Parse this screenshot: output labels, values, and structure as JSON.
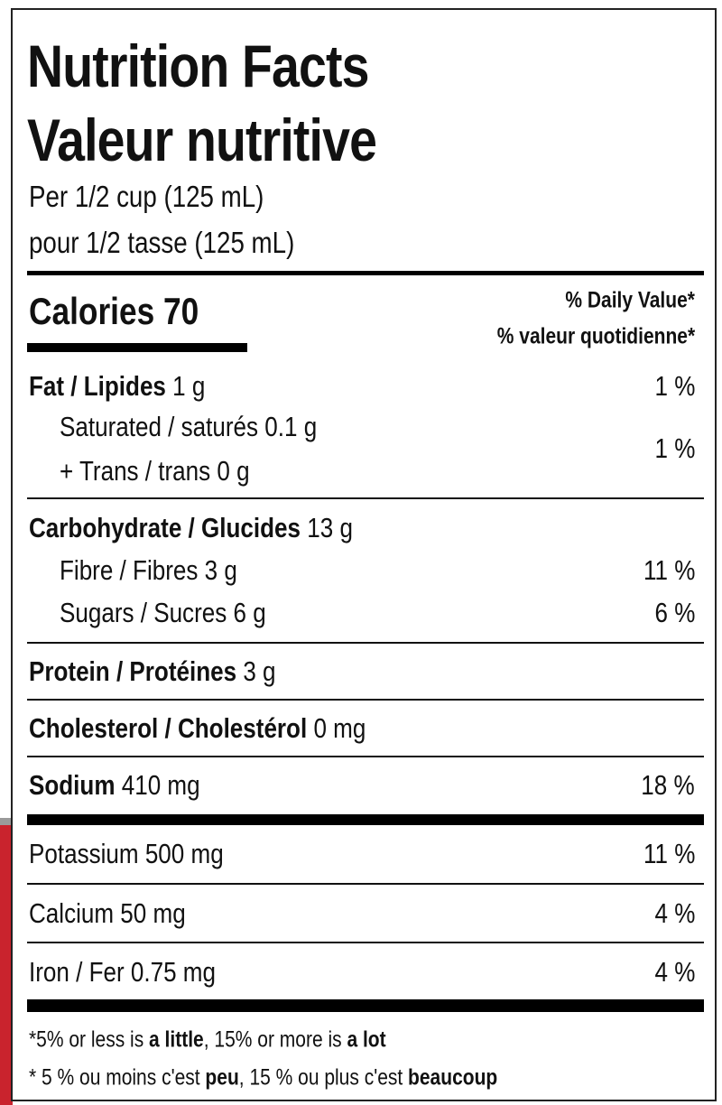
{
  "title_en": "Nutrition Facts",
  "title_fr": "Valeur nutritive",
  "serving_en": "Per 1/2 cup (125 mL)",
  "serving_fr": "pour 1/2 tasse (125 mL)",
  "calories_label": "Calories",
  "calories_value": "70",
  "dv_en": "% Daily Value*",
  "dv_fr": "% valeur quotidienne*",
  "rows": [
    {
      "label": "Fat / Lipides",
      "amount": "1 g",
      "dv": "1 %"
    },
    {
      "label": "Saturated / saturés",
      "amount": "0.1 g"
    },
    {
      "label": "+ Trans / trans",
      "amount": "0 g",
      "dv": "1 %"
    },
    {
      "label": "Carbohydrate / Glucides",
      "amount": "13 g"
    },
    {
      "label": "Fibre / Fibres",
      "amount": "3 g",
      "dv": "11 %"
    },
    {
      "label": "Sugars / Sucres",
      "amount": "6 g",
      "dv": "6 %"
    },
    {
      "label": "Protein / Protéines",
      "amount": "3 g"
    },
    {
      "label": "Cholesterol / Cholestérol",
      "amount": "0 mg"
    },
    {
      "label": "Sodium",
      "amount": "410 mg",
      "dv": "18 %"
    },
    {
      "label": "Potassium",
      "amount": "500 mg",
      "dv": "11 %"
    },
    {
      "label": "Calcium",
      "amount": "50 mg",
      "dv": "4 %"
    },
    {
      "label": "Iron / Fer",
      "amount": "0.75 mg",
      "dv": "4 %"
    }
  ],
  "footnote_en": {
    "a": "*5% or less is ",
    "b": "a little",
    "c": ", 15% or more is ",
    "d": "a lot"
  },
  "footnote_fr": {
    "a": "* 5 % ou moins c'est ",
    "b": "peu",
    "c": ", 15 % ou plus c'est ",
    "d": "beaucoup"
  },
  "colors": {
    "background_strip": "#c9232d",
    "text": "#111111"
  }
}
